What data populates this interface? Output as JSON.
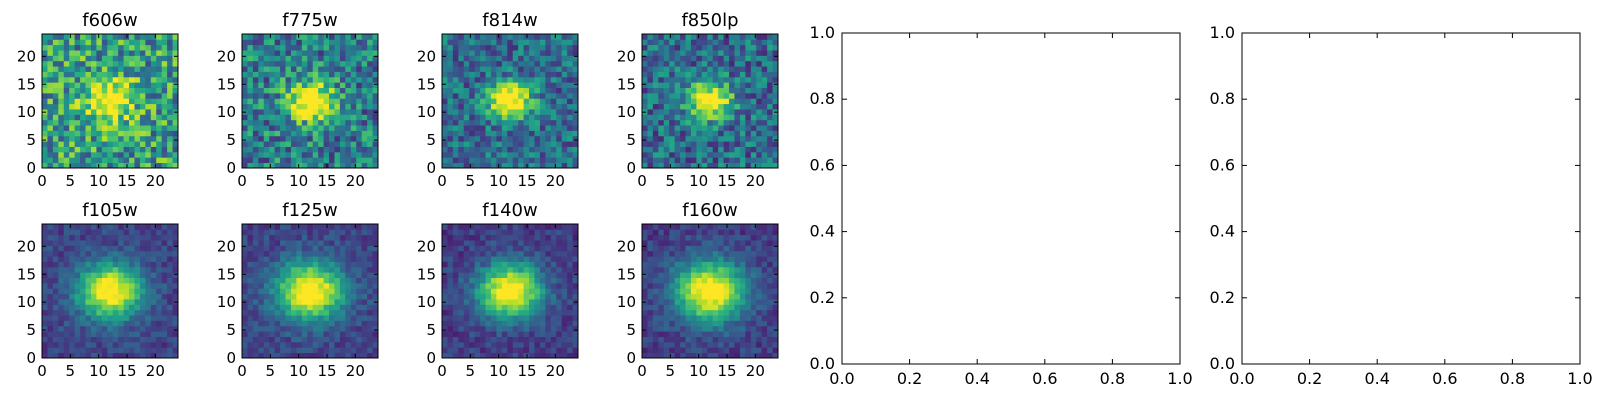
{
  "chart_data": [
    {
      "type": "heatmap",
      "title": "f606w",
      "xlim": [
        0,
        24
      ],
      "ylim": [
        0,
        24
      ],
      "xticks": [
        0,
        5,
        10,
        15,
        20
      ],
      "yticks": [
        0,
        5,
        10,
        15,
        20
      ],
      "grid_size": [
        25,
        25
      ],
      "peak_center": [
        12,
        12
      ],
      "peak_value": 1.0,
      "background_level": 0.55,
      "noise_level": 0.32,
      "profile_width": 2.6
    },
    {
      "type": "heatmap",
      "title": "f775w",
      "xlim": [
        0,
        24
      ],
      "ylim": [
        0,
        24
      ],
      "xticks": [
        0,
        5,
        10,
        15,
        20
      ],
      "yticks": [
        0,
        5,
        10,
        15,
        20
      ],
      "grid_size": [
        25,
        25
      ],
      "peak_center": [
        12,
        12
      ],
      "peak_value": 1.0,
      "background_level": 0.42,
      "noise_level": 0.28,
      "profile_width": 2.6
    },
    {
      "type": "heatmap",
      "title": "f814w",
      "xlim": [
        0,
        24
      ],
      "ylim": [
        0,
        24
      ],
      "xticks": [
        0,
        5,
        10,
        15,
        20
      ],
      "yticks": [
        0,
        5,
        10,
        15,
        20
      ],
      "grid_size": [
        25,
        25
      ],
      "peak_center": [
        12,
        12
      ],
      "peak_value": 1.0,
      "background_level": 0.35,
      "noise_level": 0.22,
      "profile_width": 2.4
    },
    {
      "type": "heatmap",
      "title": "f850lp",
      "xlim": [
        0,
        24
      ],
      "ylim": [
        0,
        24
      ],
      "xticks": [
        0,
        5,
        10,
        15,
        20
      ],
      "yticks": [
        0,
        5,
        10,
        15,
        20
      ],
      "grid_size": [
        25,
        25
      ],
      "peak_center": [
        12,
        12
      ],
      "peak_value": 1.0,
      "background_level": 0.35,
      "noise_level": 0.24,
      "profile_width": 2.4
    },
    {
      "type": "heatmap",
      "title": "f105w",
      "xlim": [
        0,
        24
      ],
      "ylim": [
        0,
        24
      ],
      "xticks": [
        0,
        5,
        10,
        15,
        20
      ],
      "yticks": [
        0,
        5,
        10,
        15,
        20
      ],
      "grid_size": [
        25,
        25
      ],
      "peak_center": [
        12,
        12
      ],
      "peak_value": 1.0,
      "background_level": 0.2,
      "noise_level": 0.1,
      "profile_width": 3.6
    },
    {
      "type": "heatmap",
      "title": "f125w",
      "xlim": [
        0,
        24
      ],
      "ylim": [
        0,
        24
      ],
      "xticks": [
        0,
        5,
        10,
        15,
        20
      ],
      "yticks": [
        0,
        5,
        10,
        15,
        20
      ],
      "grid_size": [
        25,
        25
      ],
      "peak_center": [
        12,
        12
      ],
      "peak_value": 1.0,
      "background_level": 0.2,
      "noise_level": 0.1,
      "profile_width": 3.8
    },
    {
      "type": "heatmap",
      "title": "f140w",
      "xlim": [
        0,
        24
      ],
      "ylim": [
        0,
        24
      ],
      "xticks": [
        0,
        5,
        10,
        15,
        20
      ],
      "yticks": [
        0,
        5,
        10,
        15,
        20
      ],
      "grid_size": [
        25,
        25
      ],
      "peak_center": [
        12,
        12
      ],
      "peak_value": 1.0,
      "background_level": 0.18,
      "noise_level": 0.1,
      "profile_width": 3.6
    },
    {
      "type": "heatmap",
      "title": "f160w",
      "xlim": [
        0,
        24
      ],
      "ylim": [
        0,
        24
      ],
      "xticks": [
        0,
        5,
        10,
        15,
        20
      ],
      "yticks": [
        0,
        5,
        10,
        15,
        20
      ],
      "grid_size": [
        25,
        25
      ],
      "peak_center": [
        12,
        12
      ],
      "peak_value": 1.0,
      "background_level": 0.18,
      "noise_level": 0.1,
      "profile_width": 4.0
    },
    {
      "type": "line",
      "title": "",
      "xlim": [
        0.0,
        1.0
      ],
      "ylim": [
        0.0,
        1.0
      ],
      "xticks": [
        "0.0",
        "0.2",
        "0.4",
        "0.6",
        "0.8",
        "1.0"
      ],
      "yticks": [
        "0.0",
        "0.2",
        "0.4",
        "0.6",
        "0.8",
        "1.0"
      ],
      "series": []
    },
    {
      "type": "line",
      "title": "",
      "xlim": [
        0.0,
        1.0
      ],
      "ylim": [
        0.0,
        1.0
      ],
      "xticks": [
        "0.0",
        "0.2",
        "0.4",
        "0.6",
        "0.8",
        "1.0"
      ],
      "yticks": [
        "0.0",
        "0.2",
        "0.4",
        "0.6",
        "0.8",
        "1.0"
      ],
      "series": []
    }
  ],
  "colormap": "viridis",
  "colors": {
    "viridis": [
      "#440154",
      "#482878",
      "#3e4989",
      "#31688e",
      "#26828e",
      "#1f9e89",
      "#35b779",
      "#6ece58",
      "#b5de2b",
      "#fde725"
    ]
  }
}
